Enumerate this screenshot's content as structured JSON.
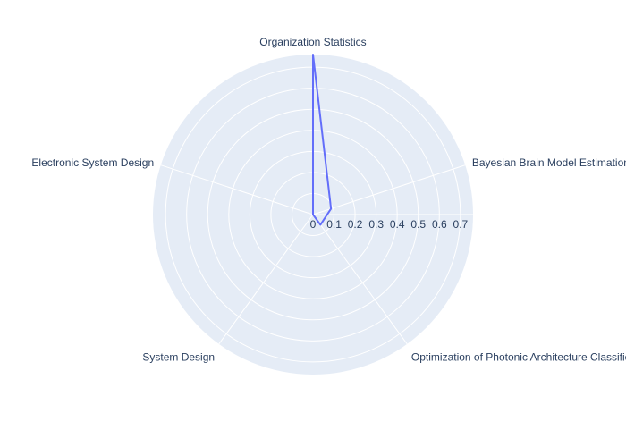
{
  "chart_data": {
    "type": "radar",
    "categories": [
      "Organization Statistics",
      "Bayesian Brain Model Estimation",
      "Optimization of Photonic Architecture Classification",
      "System Design",
      "Electronic System Design"
    ],
    "series": [
      {
        "values": [
          0.76,
          0.09,
          0.06,
          0.0,
          0.0
        ],
        "color": "#636efa"
      }
    ],
    "radial_axis": {
      "range": [
        0,
        0.76
      ],
      "ticks": [
        0,
        0.1,
        0.2,
        0.3,
        0.4,
        0.5,
        0.6,
        0.7
      ],
      "tick_labels": [
        "0",
        "0.1",
        "0.2",
        "0.3",
        "0.4",
        "0.5",
        "0.6",
        "0.7"
      ]
    },
    "background_color": "#e5ecf6",
    "grid_color": "#ffffff",
    "grid": true,
    "legend": "none"
  }
}
